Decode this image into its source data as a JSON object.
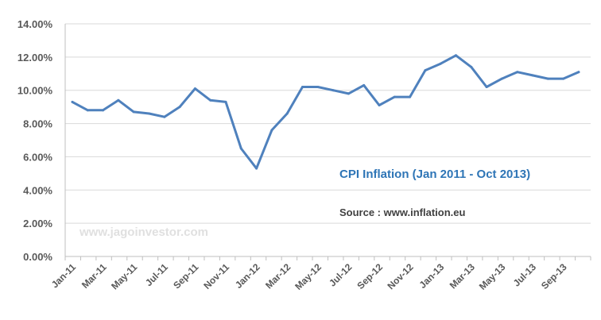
{
  "chart_data": {
    "type": "line",
    "title": "CPI Inflation  (Jan 2011  - Oct 2013)",
    "source_note": "Source :  www.inflation.eu",
    "watermark": "www.jagoinvestor.com",
    "ylim": [
      0,
      14
    ],
    "yticks": [
      0,
      2,
      4,
      6,
      8,
      10,
      12,
      14
    ],
    "ytick_labels": [
      "0.00%",
      "2.00%",
      "4.00%",
      "6.00%",
      "8.00%",
      "10.00%",
      "12.00%",
      "14.00%"
    ],
    "xtick_labels": [
      "Jan-11",
      "Mar-11",
      "May-11",
      "Jul-11",
      "Sep-11",
      "Nov-11",
      "Jan-12",
      "Mar-12",
      "May-12",
      "Jul-12",
      "Sep-12",
      "Nov-12",
      "Jan-13",
      "Mar-13",
      "May-13",
      "Jul-13",
      "Sep-13"
    ],
    "grid": true,
    "line_color": "#4f81bd",
    "series": [
      {
        "x": [
          "Jan-11",
          "Feb-11",
          "Mar-11",
          "Apr-11",
          "May-11",
          "Jun-11",
          "Jul-11",
          "Aug-11",
          "Sep-11",
          "Oct-11",
          "Nov-11",
          "Dec-11",
          "Jan-12",
          "Feb-12",
          "Mar-12",
          "Apr-12",
          "May-12",
          "Jun-12",
          "Jul-12",
          "Aug-12",
          "Sep-12",
          "Oct-12",
          "Nov-12",
          "Dec-12",
          "Jan-13",
          "Feb-13",
          "Mar-13",
          "Apr-13",
          "May-13",
          "Jun-13",
          "Jul-13",
          "Aug-13",
          "Sep-13",
          "Oct-13"
        ],
        "values": [
          9.3,
          8.8,
          8.8,
          9.4,
          8.7,
          8.6,
          8.4,
          9.0,
          10.1,
          9.4,
          9.3,
          6.5,
          5.3,
          7.6,
          8.6,
          10.2,
          10.2,
          10.0,
          9.8,
          10.3,
          9.1,
          9.6,
          9.6,
          11.2,
          11.6,
          12.1,
          11.4,
          10.2,
          10.7,
          11.1,
          10.9,
          10.7,
          10.7,
          11.1
        ]
      }
    ]
  }
}
